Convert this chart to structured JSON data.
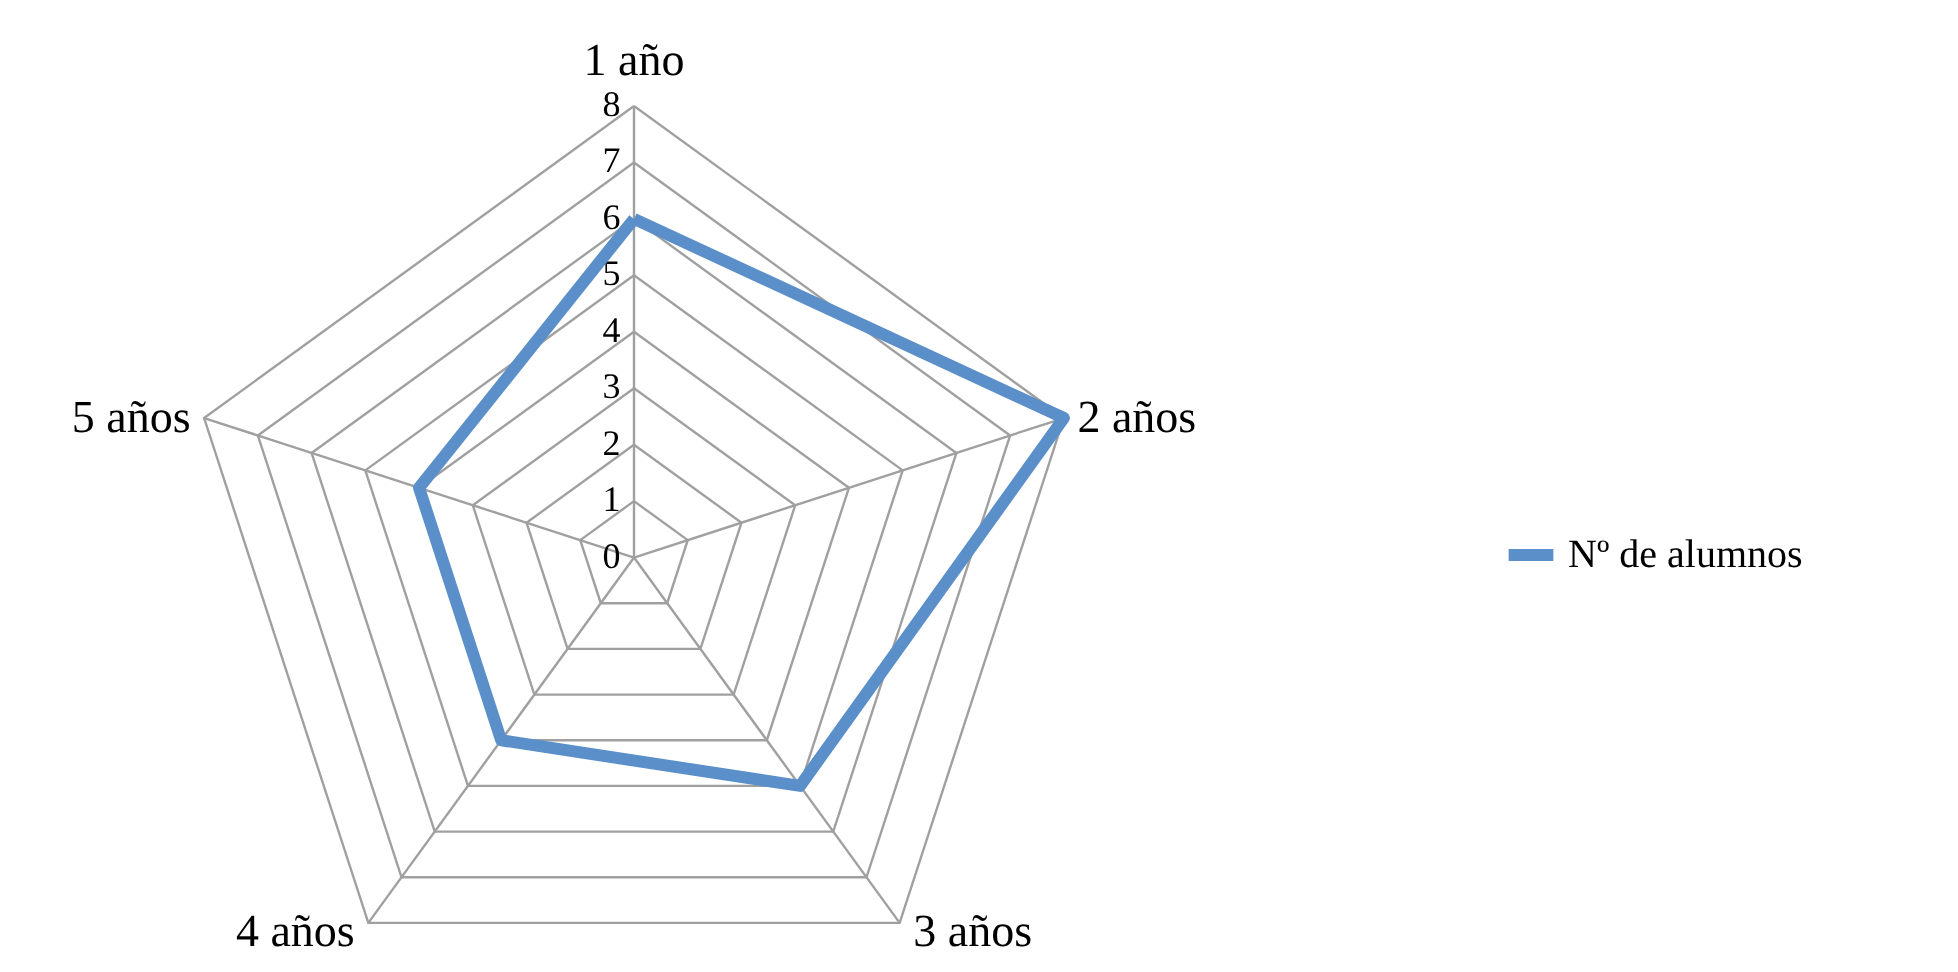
{
  "chart_data": {
    "type": "radar",
    "categories": [
      "1 año",
      "2 años",
      "3 años",
      "4 años",
      "5 años"
    ],
    "series": [
      {
        "name": "Nº de alumnos",
        "color": "#5b8fc9",
        "values": [
          6,
          8,
          5,
          4,
          4
        ]
      }
    ],
    "ylim": [
      0,
      8
    ],
    "yticks": [
      0,
      1,
      2,
      3,
      4,
      5,
      6,
      7,
      8
    ],
    "grid": true,
    "legend": "right"
  }
}
